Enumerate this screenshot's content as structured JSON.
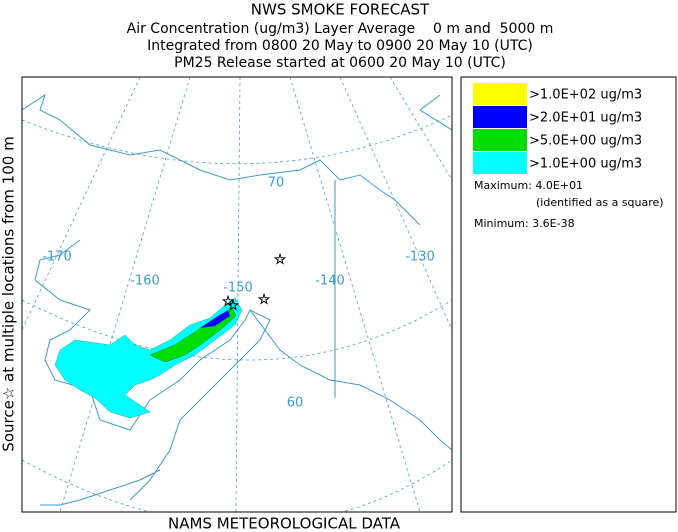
{
  "header": {
    "title": "NWS SMOKE FORECAST",
    "lines": [
      "Air Concentration (ug/m3) Layer Average    0 m and  5000 m",
      "Integrated from 0800 20 May to 0900 20 May 10 (UTC)",
      "PM25 Release started at 0600 20 May 10 (UTC)"
    ]
  },
  "side_text": "Source☆ at multiple locations from 100 m",
  "footer": "NAMS METEOROLOGICAL DATA",
  "legend": {
    "items": [
      {
        "label": ">1.0E+02 ug/m3",
        "color": "#ffff00"
      },
      {
        "label": ">2.0E+01 ug/m3",
        "color": "#0000ff"
      },
      {
        "label": ">5.0E+00 ug/m3",
        "color": "#00dd00"
      },
      {
        "label": ">1.0E+00 ug/m3",
        "color": "#00ffff"
      }
    ],
    "maximum": "Maximum: 4.0E+01",
    "maximum_note": "(identified as a square)",
    "minimum": "Minimum: 3.6E-38"
  },
  "map": {
    "grid_labels": [
      "-170",
      "-160",
      "-150",
      "-140",
      "-130",
      "70",
      "60"
    ]
  }
}
